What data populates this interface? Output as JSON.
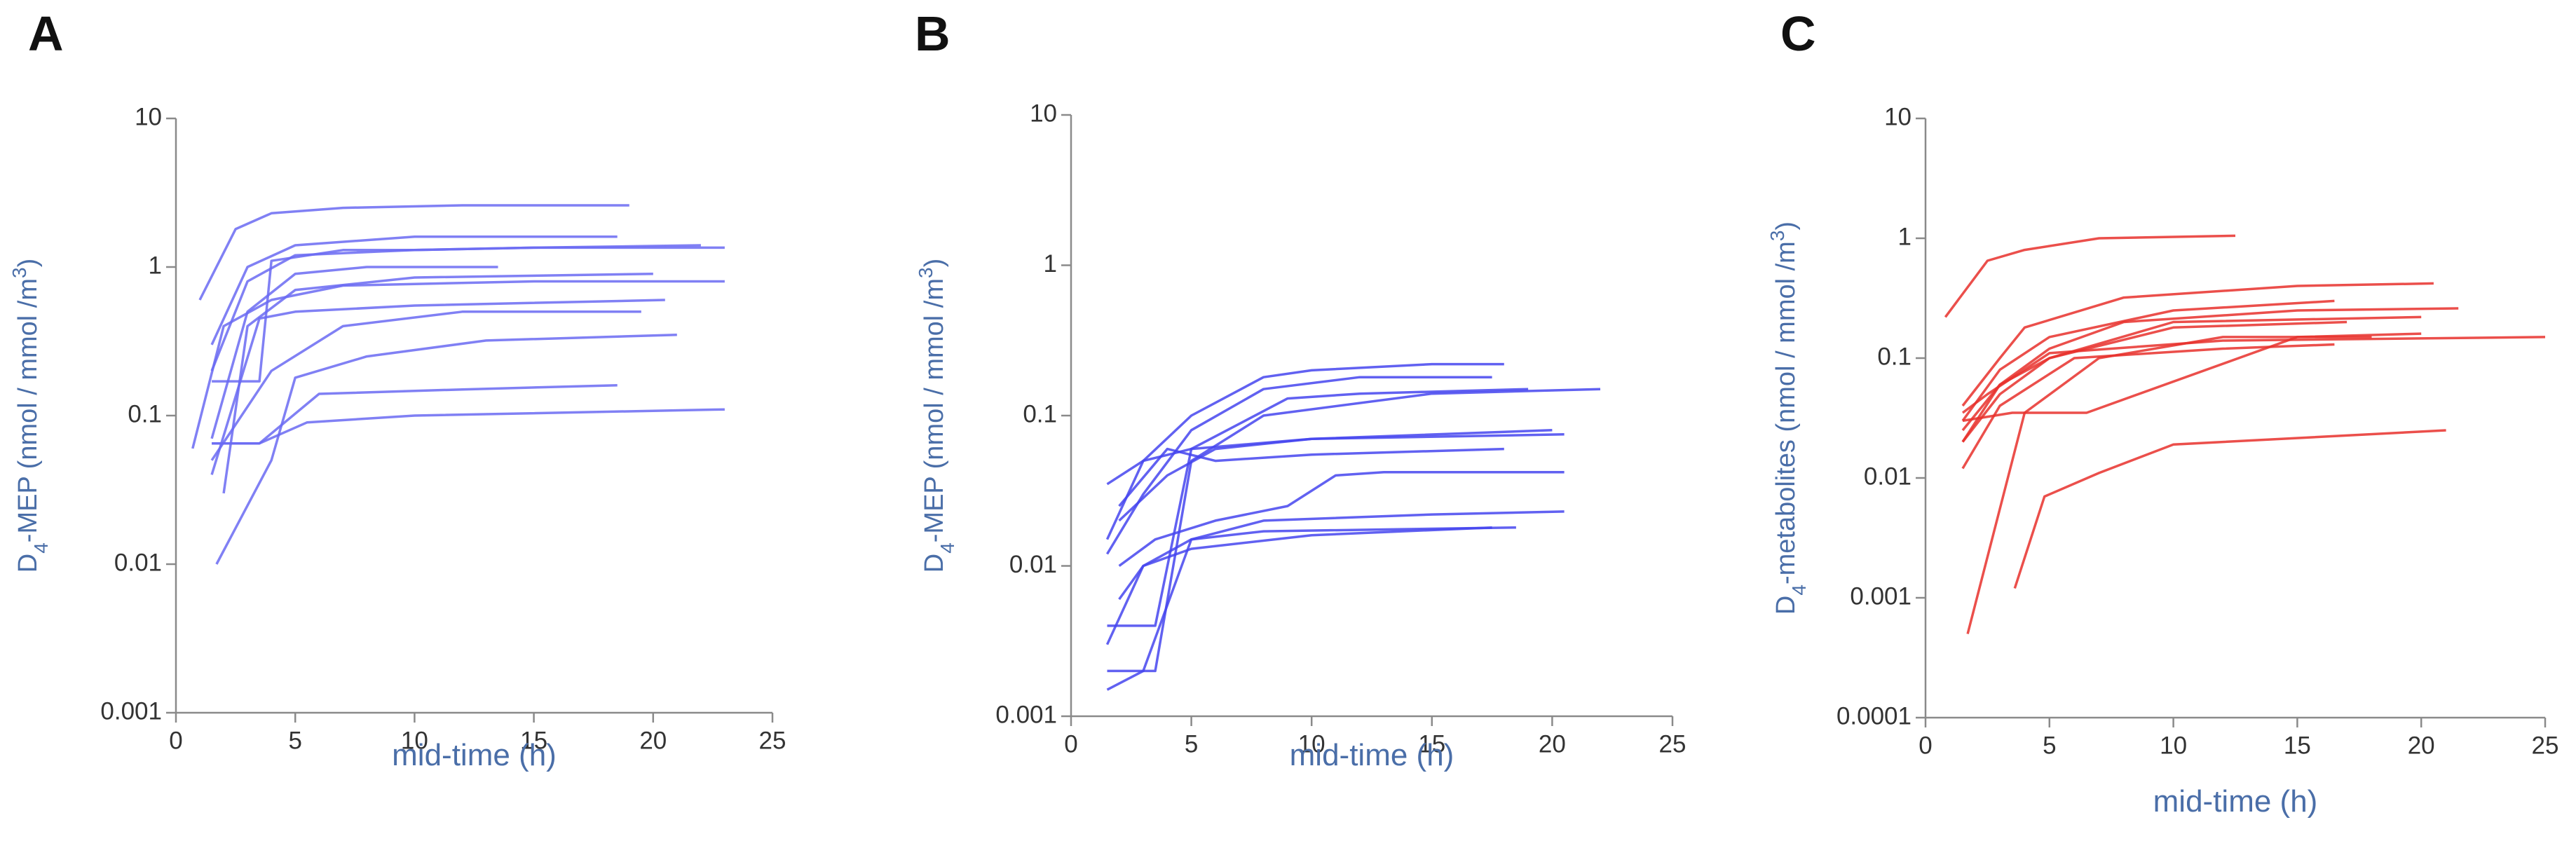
{
  "chart_data": [
    {
      "panel": "A",
      "type": "line",
      "log_y": true,
      "color": "#6a6af2",
      "xlabel": "mid-time (h)",
      "ylabel_parts": [
        "D",
        "4",
        "-MEP (nmol / mmol /m",
        "3",
        ")"
      ],
      "xlim": [
        0,
        25
      ],
      "xticks": [
        0,
        5,
        10,
        15,
        20,
        25
      ],
      "ylim": [
        0.001,
        10
      ],
      "yticks": [
        0.001,
        0.01,
        0.1,
        1,
        10
      ],
      "series": [
        {
          "x": [
            1,
            2.5,
            4,
            7,
            12,
            19
          ],
          "values": [
            0.6,
            1.8,
            2.3,
            2.5,
            2.6,
            2.6
          ]
        },
        {
          "x": [
            1.5,
            3,
            5,
            10,
            15,
            22
          ],
          "values": [
            0.2,
            0.8,
            1.2,
            1.3,
            1.35,
            1.4
          ]
        },
        {
          "x": [
            1.5,
            2,
            3.5,
            4,
            7,
            10,
            15,
            23
          ],
          "values": [
            0.17,
            0.17,
            0.17,
            1.1,
            1.3,
            1.3,
            1.35,
            1.35
          ]
        },
        {
          "x": [
            1.5,
            3,
            5,
            8,
            13.5
          ],
          "values": [
            0.07,
            0.5,
            0.9,
            1,
            1
          ]
        },
        {
          "x": [
            1.5,
            3,
            5,
            10,
            18.5
          ],
          "values": [
            0.3,
            1,
            1.4,
            1.6,
            1.6
          ]
        },
        {
          "x": [
            2,
            3,
            5,
            10,
            20
          ],
          "values": [
            0.03,
            0.4,
            0.7,
            0.85,
            0.9
          ]
        },
        {
          "x": [
            1.5,
            3.5,
            5,
            10,
            20.5
          ],
          "values": [
            0.04,
            0.45,
            0.5,
            0.55,
            0.6
          ]
        },
        {
          "x": [
            1.5,
            4,
            7,
            12,
            19.5
          ],
          "values": [
            0.05,
            0.2,
            0.4,
            0.5,
            0.5
          ]
        },
        {
          "x": [
            1.7,
            4,
            5,
            8,
            13,
            21
          ],
          "values": [
            0.01,
            0.05,
            0.18,
            0.25,
            0.32,
            0.35
          ]
        },
        {
          "x": [
            1.5,
            3.5,
            6,
            12,
            18.5
          ],
          "values": [
            0.065,
            0.065,
            0.14,
            0.15,
            0.16
          ]
        },
        {
          "x": [
            0.7,
            2,
            4,
            7,
            15,
            23
          ],
          "values": [
            0.06,
            0.4,
            0.6,
            0.75,
            0.8,
            0.8
          ]
        },
        {
          "x": [
            1.5,
            3.5,
            5.5,
            10,
            23
          ],
          "values": [
            0.065,
            0.065,
            0.09,
            0.1,
            0.11
          ]
        }
      ]
    },
    {
      "panel": "B",
      "type": "line",
      "log_y": true,
      "color": "#4545ee",
      "xlabel": "mid-time (h)",
      "ylabel_parts": [
        "D",
        "4",
        "-MEP (nmol / mmol /m",
        "3",
        ")"
      ],
      "xlim": [
        0,
        25
      ],
      "xticks": [
        0,
        5,
        10,
        15,
        20,
        25
      ],
      "ylim": [
        0.001,
        10
      ],
      "yticks": [
        0.001,
        0.01,
        0.1,
        1,
        10
      ],
      "series": [
        {
          "x": [
            1.5,
            3,
            5,
            8,
            10,
            15,
            18
          ],
          "values": [
            0.035,
            0.05,
            0.1,
            0.18,
            0.2,
            0.22,
            0.22
          ]
        },
        {
          "x": [
            1.5,
            3,
            5,
            8,
            12,
            17.5
          ],
          "values": [
            0.012,
            0.03,
            0.08,
            0.15,
            0.18,
            0.18
          ]
        },
        {
          "x": [
            1.5,
            3.5,
            5,
            9,
            12,
            19
          ],
          "values": [
            0.004,
            0.004,
            0.06,
            0.13,
            0.14,
            0.15
          ]
        },
        {
          "x": [
            1.5,
            3.5,
            5,
            8,
            15,
            22
          ],
          "values": [
            0.002,
            0.002,
            0.05,
            0.1,
            0.14,
            0.15
          ]
        },
        {
          "x": [
            2,
            4,
            6,
            10,
            20.5
          ],
          "values": [
            0.02,
            0.04,
            0.06,
            0.07,
            0.075
          ]
        },
        {
          "x": [
            1.5,
            3,
            5,
            10,
            20
          ],
          "values": [
            0.015,
            0.05,
            0.06,
            0.07,
            0.08
          ]
        },
        {
          "x": [
            2,
            4,
            6,
            10,
            18
          ],
          "values": [
            0.025,
            0.06,
            0.05,
            0.055,
            0.06
          ]
        },
        {
          "x": [
            2,
            3.5,
            6,
            9,
            11,
            13,
            20.5
          ],
          "values": [
            0.01,
            0.015,
            0.02,
            0.025,
            0.04,
            0.042,
            0.042
          ]
        },
        {
          "x": [
            1.5,
            3,
            5,
            8,
            15,
            20.5
          ],
          "values": [
            0.003,
            0.01,
            0.015,
            0.02,
            0.022,
            0.023
          ]
        },
        {
          "x": [
            2,
            3,
            5,
            10,
            17.5
          ],
          "values": [
            0.006,
            0.01,
            0.013,
            0.016,
            0.018
          ]
        },
        {
          "x": [
            1.5,
            3,
            5,
            8,
            18.5
          ],
          "values": [
            0.0015,
            0.002,
            0.015,
            0.017,
            0.018
          ]
        }
      ]
    },
    {
      "panel": "C",
      "type": "line",
      "log_y": true,
      "color": "#e8302c",
      "xlabel": "mid-time (h)",
      "ylabel_parts": [
        "D",
        "4",
        "-metabolites (nmol / mmol /m",
        "3",
        ")"
      ],
      "xlim": [
        0,
        25
      ],
      "xticks": [
        0,
        5,
        10,
        15,
        20,
        25
      ],
      "ylim": [
        0.0001,
        10
      ],
      "yticks": [
        0.0001,
        0.001,
        0.01,
        0.1,
        1,
        10
      ],
      "series": [
        {
          "x": [
            0.8,
            2.5,
            4,
            7,
            12.5
          ],
          "values": [
            0.22,
            0.65,
            0.8,
            1,
            1.05
          ]
        },
        {
          "x": [
            1.5,
            3,
            4,
            8,
            15,
            20.5
          ],
          "values": [
            0.04,
            0.1,
            0.18,
            0.32,
            0.4,
            0.42
          ]
        },
        {
          "x": [
            1.5,
            3,
            5,
            10,
            16.5
          ],
          "values": [
            0.03,
            0.08,
            0.15,
            0.25,
            0.3
          ]
        },
        {
          "x": [
            1.5,
            3,
            5,
            8,
            15,
            21.5
          ],
          "values": [
            0.025,
            0.06,
            0.12,
            0.2,
            0.25,
            0.26
          ]
        },
        {
          "x": [
            1.5,
            3,
            5,
            10,
            20
          ],
          "values": [
            0.02,
            0.05,
            0.1,
            0.2,
            0.22
          ]
        },
        {
          "x": [
            1.5,
            2.5,
            5,
            12,
            25
          ],
          "values": [
            0.035,
            0.05,
            0.11,
            0.14,
            0.15
          ]
        },
        {
          "x": [
            1.5,
            3,
            6,
            12,
            16.5
          ],
          "values": [
            0.012,
            0.04,
            0.1,
            0.12,
            0.13
          ]
        },
        {
          "x": [
            1.5,
            3.5,
            6.5,
            15,
            20
          ],
          "values": [
            0.03,
            0.035,
            0.035,
            0.15,
            0.16
          ]
        },
        {
          "x": [
            1.7,
            4,
            7,
            12,
            18
          ],
          "values": [
            0.0005,
            0.035,
            0.1,
            0.15,
            0.15
          ]
        },
        {
          "x": [
            3.6,
            4.8,
            7,
            10,
            21
          ],
          "values": [
            0.0012,
            0.007,
            0.011,
            0.019,
            0.025
          ]
        },
        {
          "x": [
            1.5,
            3,
            5,
            10,
            17
          ],
          "values": [
            0.02,
            0.06,
            0.1,
            0.18,
            0.2
          ]
        }
      ]
    }
  ]
}
